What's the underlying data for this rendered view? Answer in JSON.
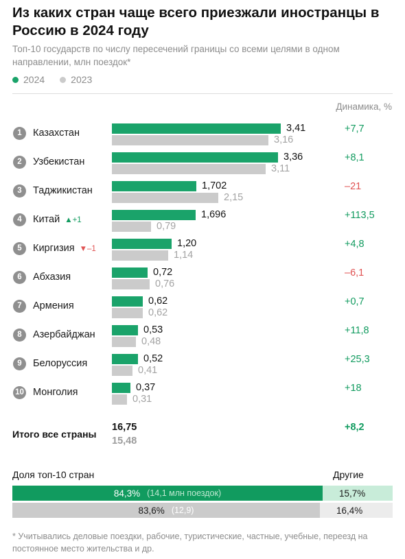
{
  "title": "Из каких стран чаще всего приезжали иностранцы в Россию в 2024 году",
  "subtitle": "Топ-10 государств по числу пересечений границы со всеми целями в одном направлении, млн поездок*",
  "legend": {
    "current": "2024",
    "previous": "2023"
  },
  "colors": {
    "current": "#1aa36a",
    "previous": "#cbcbcb",
    "positive": "#119b5f",
    "negative": "#e05252"
  },
  "dynamics_header": "Динамика, %",
  "chart_data": {
    "type": "bar",
    "orientation": "horizontal",
    "categories": [
      "Казахстан",
      "Узбекистан",
      "Таджикистан",
      "Китай",
      "Киргизия",
      "Абхазия",
      "Армения",
      "Азербайджан",
      "Белоруссия",
      "Монголия"
    ],
    "series": [
      {
        "name": "2024",
        "values": [
          3.41,
          3.36,
          1.702,
          1.696,
          1.2,
          0.72,
          0.62,
          0.53,
          0.52,
          0.37
        ],
        "labels": [
          "3,41",
          "3,36",
          "1,702",
          "1,696",
          "1,20",
          "0,72",
          "0,62",
          "0,53",
          "0,52",
          "0,37"
        ]
      },
      {
        "name": "2023",
        "values": [
          3.16,
          3.11,
          2.15,
          0.79,
          1.14,
          0.76,
          0.62,
          0.48,
          0.41,
          0.31
        ],
        "labels": [
          "3,16",
          "3,11",
          "2,15",
          "0,79",
          "1,14",
          "0,76",
          "0,62",
          "0,48",
          "0,41",
          "0,31"
        ]
      }
    ],
    "ranks": [
      "1",
      "2",
      "3",
      "4",
      "5",
      "6",
      "7",
      "8",
      "9",
      "10"
    ],
    "rank_changes": [
      {
        "index": 3,
        "direction": "up",
        "label": "▲+1"
      },
      {
        "index": 4,
        "direction": "down",
        "label": "▼–1"
      }
    ],
    "dynamics": [
      "+7,7",
      "+8,1",
      "–21",
      "+113,5",
      "+4,8",
      "–6,1",
      "+0,7",
      "+11,8",
      "+25,3",
      "+18"
    ],
    "dynamics_values": [
      7.7,
      8.1,
      -21,
      113.5,
      4.8,
      -6.1,
      0.7,
      11.8,
      25.3,
      18
    ],
    "xlim": [
      0,
      3.41
    ]
  },
  "totals": {
    "label": "Итого все страны",
    "current": "16,75",
    "previous": "15,48",
    "dynamics": "+8,2"
  },
  "share": {
    "label": "Доля топ-10 стран",
    "others_label": "Другие",
    "current": {
      "main_value": 84.3,
      "main_label": "84,3%",
      "note": "(14,1 млн поездок)",
      "rest_label": "15,7%"
    },
    "previous": {
      "main_value": 83.6,
      "main_label": "83,6%",
      "note": "(12,9)",
      "rest_label": "16,4%"
    }
  },
  "footnote": "* Учитывались деловые поездки, рабочие, туристические, частные, учебные, переезд на постоянное место жительства и др."
}
